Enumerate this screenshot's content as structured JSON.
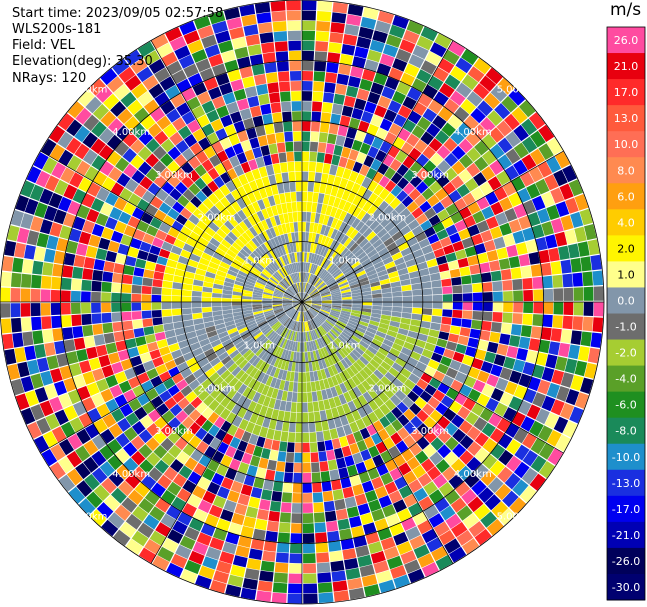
{
  "info": {
    "start_time": "Start time: 2023/09/05 02:57:58",
    "device": "WLS200s-181",
    "field": "Field: VEL",
    "elevation": "Elevation(deg): 35.30",
    "nrays": "NRays: 120"
  },
  "colorbar": {
    "unit": "m/s",
    "bins": [
      {
        "label": "26.0",
        "color": "#ff4ba0"
      },
      {
        "label": "21.0",
        "color": "#e8000f"
      },
      {
        "label": "17.0",
        "color": "#ff2a2a"
      },
      {
        "label": "13.0",
        "color": "#ff5a3c"
      },
      {
        "label": "10.0",
        "color": "#ff6e55"
      },
      {
        "label": "8.0",
        "color": "#ff8a50"
      },
      {
        "label": "6.0",
        "color": "#ff9f10"
      },
      {
        "label": "4.0",
        "color": "#ffcc00"
      },
      {
        "label": "2.0",
        "color": "#fff500"
      },
      {
        "label": "1.0",
        "color": "#ffff8c"
      },
      {
        "label": "0.0",
        "color": "#8296aa"
      },
      {
        "label": "-1.0",
        "color": "#6d6d6d"
      },
      {
        "label": "-2.0",
        "color": "#a6cd32"
      },
      {
        "label": "-4.0",
        "color": "#5aa028"
      },
      {
        "label": "-6.0",
        "color": "#1f8f20"
      },
      {
        "label": "-8.0",
        "color": "#1a8a5a"
      },
      {
        "label": "-10.0",
        "color": "#1e8fcc"
      },
      {
        "label": "-13.0",
        "color": "#1a2fe0"
      },
      {
        "label": "-17.0",
        "color": "#0000f0"
      },
      {
        "label": "-21.0",
        "color": "#0000b4"
      },
      {
        "label": "-26.0",
        "color": "#00005a"
      },
      {
        "label": "-30.0",
        "color": "#000070"
      }
    ]
  },
  "chart_data": {
    "type": "heatmap",
    "projection": "polar PPI",
    "field": "VEL",
    "unit": "m/s",
    "ray_count": 120,
    "range_ring_labels": [
      "1.0km",
      "2.00km",
      "3.00km",
      "4.00km",
      "5.00km"
    ],
    "ring_ranges_km": [
      1,
      2,
      3,
      4,
      5
    ],
    "max_range_km": 5.0,
    "pattern_note_visible": false,
    "regions": [
      {
        "range_km": [
          0,
          1
        ],
        "dominant_values": [
          "0.0",
          "-1.0",
          "2.0"
        ]
      },
      {
        "range_km": [
          1,
          2.4
        ],
        "dominant_values": [
          "2.0 (north-west)",
          "-2.0 (south-east)",
          "0.0"
        ]
      },
      {
        "range_km": [
          2.4,
          5
        ],
        "dominant_values": [
          "noise: mixed full color scale"
        ]
      }
    ]
  }
}
